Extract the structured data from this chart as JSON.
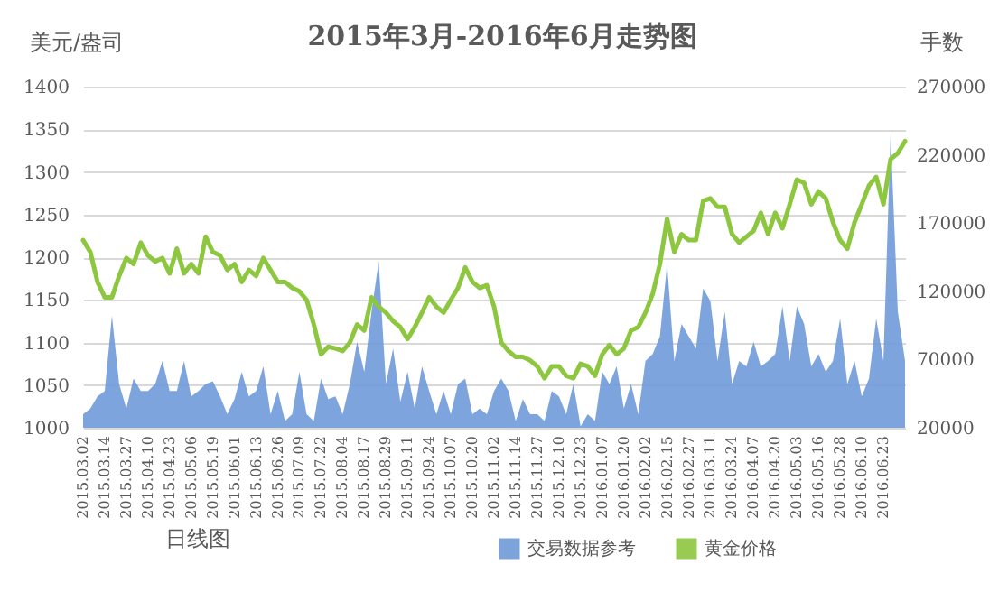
{
  "chart_data": {
    "type": "line",
    "title": "2015年3月-2016年6月走势图",
    "xlabel": "日线图",
    "ylabel": "美元/盎司",
    "y2label": "手数",
    "categories": [
      "2015.03.02",
      null,
      null,
      "2015.03.14",
      null,
      null,
      "2015.03.27",
      null,
      null,
      "2015.04.10",
      null,
      null,
      "2015.04.23",
      null,
      null,
      "2015.05.06",
      null,
      null,
      "2015.05.19",
      null,
      null,
      "2015.06.01",
      null,
      null,
      "2015.06.13",
      null,
      null,
      "2015.06.26",
      null,
      null,
      "2015.07.09",
      null,
      null,
      "2015.07.22",
      null,
      null,
      "2015.08.04",
      null,
      null,
      "2015.08.17",
      null,
      null,
      "2015.08.29",
      null,
      null,
      "2015.09.11",
      null,
      null,
      "2015.09.24",
      null,
      null,
      "2015.10.07",
      null,
      null,
      "2015.10.20",
      null,
      null,
      "2015.11.02",
      null,
      null,
      "2015.11.14",
      null,
      null,
      "2015.11.27",
      null,
      null,
      "2015.12.10",
      null,
      null,
      "2015.12.23",
      null,
      null,
      "2016.01.07",
      null,
      null,
      "2016.01.20",
      null,
      null,
      "2016.02.02",
      null,
      null,
      "2016.02.15",
      null,
      null,
      "2016.02.27",
      null,
      null,
      "2016.03.11",
      null,
      null,
      "2016.03.24",
      null,
      null,
      "2016.04.07",
      null,
      null,
      "2016.04.20",
      null,
      null,
      "2016.05.03",
      null,
      null,
      "2016.05.16",
      null,
      null,
      "2016.05.28",
      null,
      null,
      "2016.06.10",
      null,
      null,
      "2016.06.23",
      null,
      null,
      null
    ],
    "series": [
      {
        "name": "交易数据参考",
        "type": "area",
        "axis": "y2",
        "color": "#6f9ad8",
        "values": [
          30000,
          34000,
          43000,
          47000,
          102000,
          52000,
          34000,
          56000,
          47000,
          47000,
          52000,
          69000,
          47000,
          47000,
          69000,
          43000,
          47000,
          52000,
          54000,
          43000,
          30000,
          41000,
          61000,
          43000,
          47000,
          65000,
          30000,
          47000,
          25000,
          30000,
          61000,
          30000,
          25000,
          56000,
          41000,
          43000,
          30000,
          52000,
          83000,
          61000,
          105000,
          142000,
          52000,
          78000,
          39000,
          61000,
          34000,
          65000,
          47000,
          30000,
          47000,
          30000,
          52000,
          56000,
          30000,
          34000,
          30000,
          47000,
          56000,
          47000,
          25000,
          41000,
          30000,
          30000,
          25000,
          47000,
          43000,
          30000,
          52000,
          21000,
          30000,
          25000,
          61000,
          52000,
          65000,
          34000,
          52000,
          30000,
          69000,
          74000,
          87000,
          140000,
          69000,
          96000,
          87000,
          78000,
          122000,
          113000,
          69000,
          105000,
          52000,
          69000,
          65000,
          83000,
          65000,
          69000,
          74000,
          109000,
          69000,
          109000,
          96000,
          65000,
          74000,
          61000,
          69000,
          100000,
          52000,
          69000,
          43000,
          56000,
          100000,
          69000,
          235000,
          105000,
          69000
        ]
      },
      {
        "name": "黄金价格",
        "type": "line",
        "color": "#8dc63f",
        "values": [
          1220,
          1206,
          1171,
          1153,
          1153,
          1178,
          1199,
          1192,
          1217,
          1202,
          1195,
          1199,
          1181,
          1210,
          1181,
          1192,
          1181,
          1224,
          1206,
          1202,
          1185,
          1192,
          1171,
          1185,
          1178,
          1199,
          1185,
          1171,
          1171,
          1164,
          1160,
          1150,
          1121,
          1086,
          1095,
          1093,
          1090,
          1100,
          1121,
          1114,
          1153,
          1142,
          1135,
          1125,
          1118,
          1104,
          1118,
          1135,
          1153,
          1142,
          1135,
          1150,
          1164,
          1188,
          1171,
          1164,
          1167,
          1142,
          1100,
          1090,
          1083,
          1083,
          1079,
          1072,
          1058,
          1072,
          1072,
          1061,
          1058,
          1075,
          1072,
          1061,
          1086,
          1097,
          1086,
          1093,
          1114,
          1118,
          1135,
          1157,
          1192,
          1245,
          1206,
          1227,
          1220,
          1220,
          1266,
          1269,
          1259,
          1259,
          1227,
          1217,
          1224,
          1231,
          1252,
          1227,
          1252,
          1234,
          1262,
          1291,
          1287,
          1262,
          1277,
          1269,
          1241,
          1220,
          1210,
          1241,
          1262,
          1284,
          1294,
          1262,
          1315,
          1322,
          1336
        ]
      }
    ],
    "ylim": [
      1000,
      1400
    ],
    "yticks": [
      1000,
      1050,
      1100,
      1150,
      1200,
      1250,
      1300,
      1350,
      1400
    ],
    "y2lim": [
      20000,
      270000
    ],
    "y2ticks": [
      20000,
      70000,
      120000,
      170000,
      220000,
      270000
    ],
    "grid": "y",
    "legend": "bottom"
  }
}
